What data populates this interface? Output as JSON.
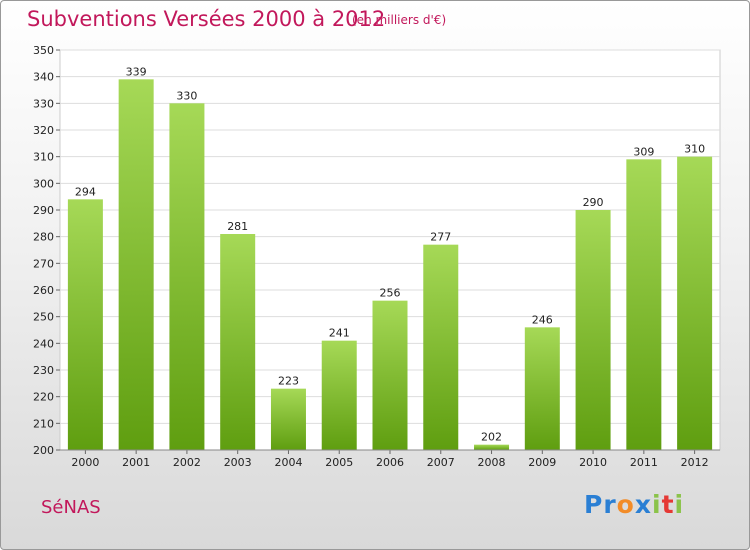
{
  "chart_data": {
    "type": "bar",
    "title": "Subventions Versées 2000 à 2012",
    "subtitle": "(en milliers d'€)",
    "categories": [
      "2000",
      "2001",
      "2002",
      "2003",
      "2004",
      "2005",
      "2006",
      "2007",
      "2008",
      "2009",
      "2010",
      "2011",
      "2012"
    ],
    "values": [
      294,
      339,
      330,
      281,
      223,
      241,
      256,
      277,
      202,
      246,
      290,
      309,
      310
    ],
    "ylim": [
      200,
      350
    ],
    "yticks": [
      200,
      210,
      220,
      230,
      240,
      250,
      260,
      270,
      280,
      290,
      300,
      310,
      320,
      330,
      340,
      350
    ],
    "grid": true,
    "colors": {
      "bar_top": "#a6d957",
      "bar_bottom": "#5f9e10",
      "title": "#c2185b"
    }
  },
  "footer": {
    "commune": "SéNAS",
    "logo_letters": [
      "P",
      "r",
      "o",
      "x",
      "i",
      "t",
      "i"
    ],
    "logo_colors": [
      "#2a7fd4",
      "#2a7fd4",
      "#f28c28",
      "#2a7fd4",
      "#8bc34a",
      "#e53935",
      "#8bc34a"
    ]
  }
}
